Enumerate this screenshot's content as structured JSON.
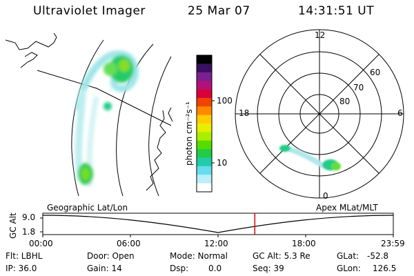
{
  "header": {
    "title": "Ultraviolet Imager",
    "date": "25 Mar 07",
    "time": "14:31:51 UT"
  },
  "colorbar": {
    "label": "photon cm⁻²s⁻¹",
    "ticks": [
      "100",
      "10"
    ],
    "colors": [
      "#000000",
      "#3a1060",
      "#7a2090",
      "#b0127a",
      "#d8003a",
      "#ee4400",
      "#ff8800",
      "#ffcc00",
      "#e8ee00",
      "#aaee00",
      "#55dd00",
      "#22cc44",
      "#22ccaa",
      "#66ddee",
      "#bbeef8",
      "#ffffff"
    ]
  },
  "polar": {
    "mlt_labels": {
      "top": "12",
      "left": "18",
      "right": "6",
      "bottom": "0"
    },
    "lat_labels": [
      "60",
      "70",
      "80"
    ]
  },
  "timeline": {
    "left_label": "Geographic Lat/Lon",
    "right_label": "Apex MLat/MLT",
    "axis_label": "GC Alt",
    "y_top": "9.0",
    "y_bottom": "1.8",
    "x_ticks": [
      "00:00",
      "06:00",
      "12:00",
      "18:00",
      "23:59"
    ],
    "current_time_fraction": 0.6049,
    "marker_color": "#dd0000"
  },
  "status": {
    "flt": "Flt: LBHL",
    "ip": "IP: 36.0",
    "door": "Door: Open",
    "gain": "Gain: 14",
    "mode": "Mode: Normal",
    "dsp_label": "Dsp:",
    "dsp_value": "0.0",
    "gc_alt": "GC Alt: 5.3 Re",
    "seq": "Seq: 39",
    "glat_label": "GLat:",
    "glat_value": "-52.8",
    "glon_label": "GLon:",
    "glon_value": "126.5"
  }
}
